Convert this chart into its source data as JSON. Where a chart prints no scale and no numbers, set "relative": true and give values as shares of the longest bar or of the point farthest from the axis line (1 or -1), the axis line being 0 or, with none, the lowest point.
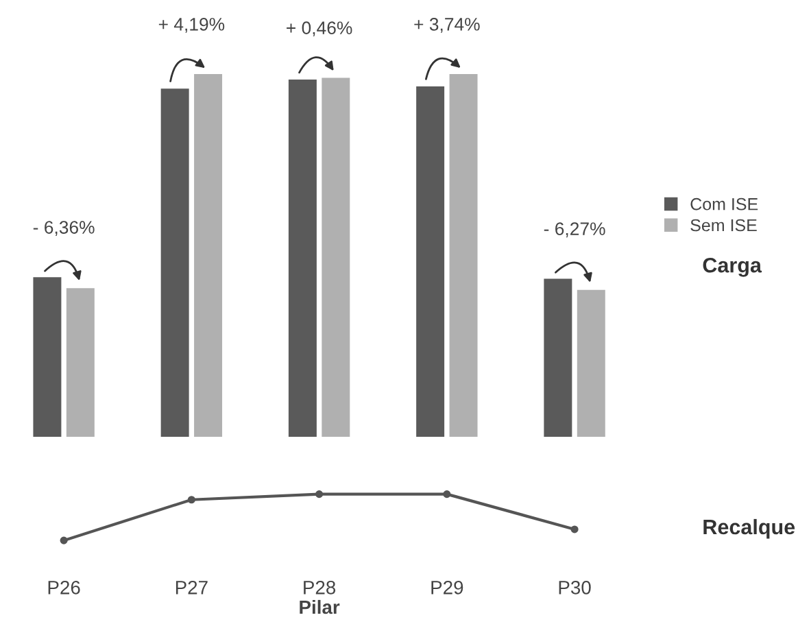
{
  "chart_data": [
    {
      "type": "bar",
      "relative": true,
      "categories": [
        null,
        null,
        null,
        null,
        null
      ],
      "tick_labels": false,
      "legend": "right",
      "ylabel": "Carga",
      "series": [
        {
          "name": "Com ISE",
          "color": "#5a5a5a",
          "values": [
            0.44,
            0.96,
            0.985,
            0.966,
            0.436
          ]
        },
        {
          "name": "Sem ISE",
          "color": "#b0b0b0",
          "values": [
            0.41,
            1.0,
            0.99,
            1.0,
            0.405
          ]
        }
      ],
      "annotations": [
        "- 6,36%",
        "+ 4,19%",
        "+ 0,46%",
        "+ 3,74%",
        "- 6,27%"
      ]
    },
    {
      "type": "line",
      "relative": true,
      "categories": [
        "P26",
        "P27",
        "P28",
        "P29",
        "P30"
      ],
      "tick_labels": "x",
      "marker": "circle",
      "line_style": "solid",
      "xlabel": "Pilar",
      "ylabel": "Recalque",
      "series": [
        {
          "color": "#555555",
          "values": [
            0,
            0.88,
            1,
            1,
            0.24
          ]
        }
      ]
    }
  ]
}
